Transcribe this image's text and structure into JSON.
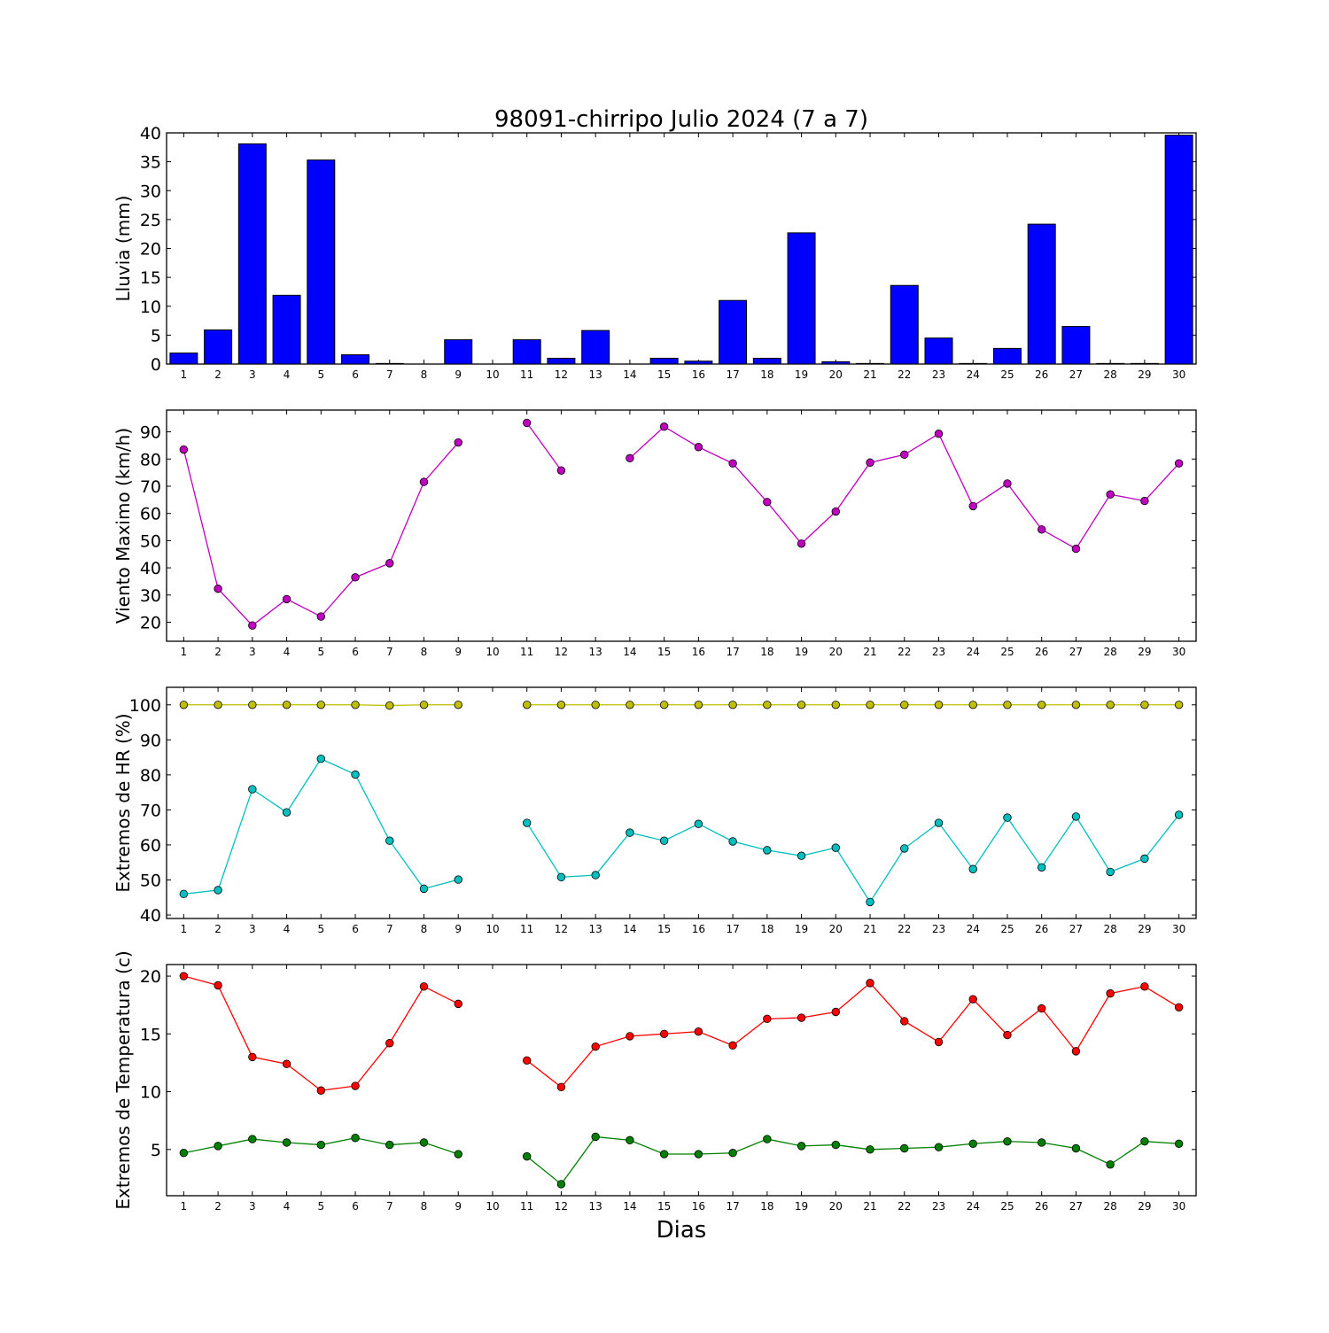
{
  "chart_data": {
    "title": "98091-chirripo Julio 2024  (7 a 7)",
    "xlabel": "Dias",
    "days": [
      1,
      2,
      3,
      4,
      5,
      6,
      7,
      8,
      9,
      10,
      11,
      12,
      13,
      14,
      15,
      16,
      17,
      18,
      19,
      20,
      21,
      22,
      23,
      24,
      25,
      26,
      27,
      28,
      29,
      30
    ],
    "grid": false,
    "colors": {
      "rain": "#0000ff",
      "wind": "#bf00bf",
      "hr_max": "#bfbf00",
      "hr_min": "#00bfbf",
      "temp_max": "#ff0000",
      "temp_min": "#008000"
    },
    "panels": [
      {
        "type": "bar",
        "ylabel": "Lluvia (mm)",
        "ylim": [
          0,
          40
        ],
        "yticks": [
          0,
          5,
          10,
          15,
          20,
          25,
          30,
          35,
          40
        ],
        "series": [
          {
            "color": "#0000ff",
            "values": [
              1.9,
              5.9,
              38.1,
              11.9,
              35.3,
              1.6,
              0.1,
              0,
              4.2,
              0,
              4.2,
              1.0,
              5.8,
              0,
              1.0,
              0.5,
              11.0,
              1.0,
              22.7,
              0.4,
              0.1,
              13.6,
              4.5,
              0.1,
              2.7,
              24.2,
              6.5,
              0.1,
              0.1,
              39.6
            ]
          }
        ]
      },
      {
        "type": "line",
        "ylabel": "Viento Maximo (km/h)",
        "ylim": [
          13,
          98
        ],
        "yticks": [
          20,
          30,
          40,
          50,
          60,
          70,
          80,
          90
        ],
        "series": [
          {
            "color": "#bf00bf",
            "values": [
              83.5,
              32.3,
              18.8,
              28.5,
              22.1,
              36.5,
              41.7,
              71.6,
              86.1,
              null,
              93.3,
              75.8,
              null,
              80.3,
              91.9,
              84.4,
              78.4,
              64.2,
              48.9,
              60.7,
              78.7,
              81.6,
              89.3,
              62.7,
              71.0,
              54.1,
              47.0,
              67.0,
              64.6,
              78.4
            ]
          }
        ]
      },
      {
        "type": "line",
        "ylabel": "Extremos de HR (%)",
        "ylim": [
          39,
          105
        ],
        "yticks": [
          40,
          50,
          60,
          70,
          80,
          90,
          100
        ],
        "series": [
          {
            "color": "#bfbf00",
            "values": [
              100,
              100,
              100,
              100,
              100,
              100,
              99.8,
              100,
              100,
              null,
              100,
              100,
              100,
              100,
              100,
              100,
              100,
              100,
              100,
              100,
              100,
              100,
              100,
              100,
              100,
              100,
              100,
              100,
              100,
              100
            ]
          },
          {
            "color": "#00bfbf",
            "values": [
              46.0,
              47.1,
              75.9,
              69.3,
              84.6,
              80.1,
              61.2,
              47.5,
              50.1,
              null,
              66.3,
              50.8,
              51.4,
              63.5,
              61.2,
              66.0,
              61.0,
              58.5,
              56.9,
              59.2,
              43.7,
              59.0,
              66.3,
              53.1,
              67.8,
              53.6,
              68.1,
              52.3,
              56.1,
              68.6
            ]
          }
        ]
      },
      {
        "type": "line",
        "ylabel": "Extremos de Temperatura (c)",
        "ylim": [
          1,
          21
        ],
        "yticks": [
          5,
          10,
          15,
          20
        ],
        "series": [
          {
            "color": "#ff0000",
            "values": [
              20.0,
              19.2,
              13.0,
              12.4,
              10.1,
              10.5,
              14.2,
              19.1,
              17.6,
              null,
              12.7,
              10.4,
              13.9,
              14.8,
              15.0,
              15.2,
              14.0,
              16.3,
              16.4,
              16.9,
              19.4,
              16.1,
              14.3,
              18.0,
              14.9,
              17.2,
              13.5,
              18.5,
              19.1,
              17.3
            ]
          },
          {
            "color": "#008000",
            "values": [
              4.7,
              5.3,
              5.9,
              5.6,
              5.4,
              6.0,
              5.4,
              5.6,
              4.6,
              null,
              4.4,
              2.0,
              6.1,
              5.8,
              4.6,
              4.6,
              4.7,
              5.9,
              5.3,
              5.4,
              5.0,
              5.1,
              5.2,
              5.5,
              5.7,
              5.6,
              5.1,
              3.7,
              5.7,
              5.5
            ]
          }
        ]
      }
    ]
  }
}
